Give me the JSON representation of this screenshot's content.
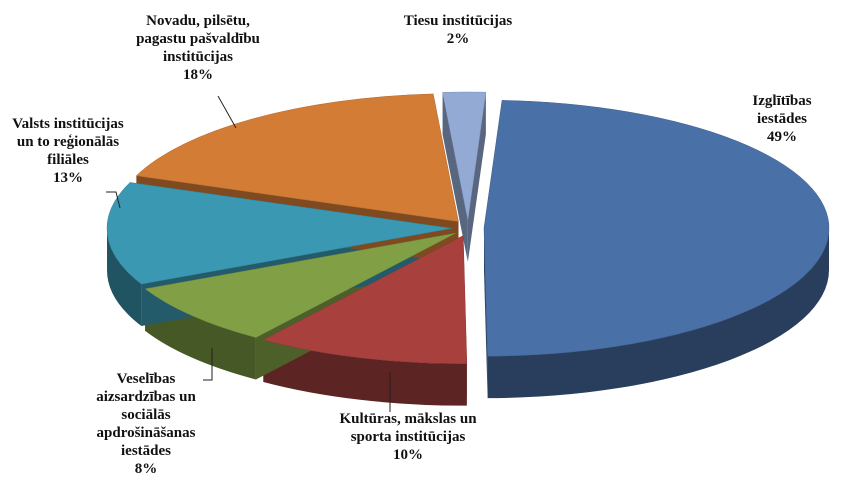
{
  "chart_data": {
    "type": "pie3d",
    "categories": [
      "Izglītības iestādes",
      "Kultūras, mākslas un\nsporta institūcijas",
      "Veselības\naizsardzības un\nsociālās\napdrošināšanas\niestādes",
      "Valsts institūcijas\nun to reģionālās\nfiliāles",
      "Novadu, pilsētu,\npagastu pašvaldību\ninstitūcijas",
      "Tiesu institūcijas"
    ],
    "values": [
      49,
      10,
      8,
      13,
      18,
      2
    ],
    "value_labels": [
      "49%",
      "10%",
      "8%",
      "13%",
      "18%",
      "2%"
    ],
    "colors": [
      "#4a70a8",
      "#a8413e",
      "#81a046",
      "#3b98b2",
      "#d37c35",
      "#93aad4"
    ]
  }
}
